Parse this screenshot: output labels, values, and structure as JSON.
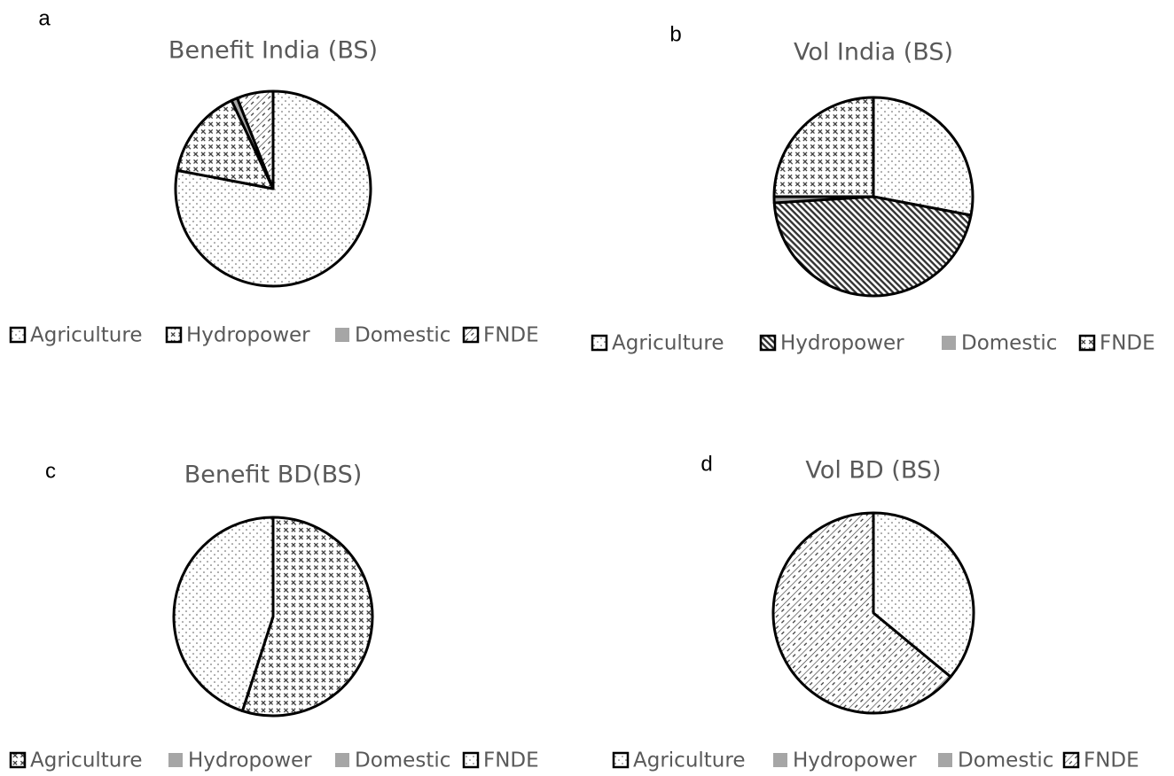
{
  "chart_data": [
    {
      "type": "pie",
      "label": "a",
      "title": "Benefit India (BS)",
      "categories": [
        "Agriculture",
        "Hydropower",
        "Domestic",
        "FNDE"
      ],
      "values": [
        78,
        15,
        1,
        6
      ],
      "patterns": [
        "dots",
        "weave",
        "gray",
        "hatch"
      ]
    },
    {
      "type": "pie",
      "label": "b",
      "title": "Vol India (BS)",
      "categories": [
        "Agriculture",
        "Hydropower",
        "Domestic",
        "FNDE"
      ],
      "values": [
        28,
        46,
        1,
        25
      ],
      "patterns": [
        "dots",
        "dense",
        "gray",
        "weave"
      ]
    },
    {
      "type": "pie",
      "label": "c",
      "title": "Benefit BD(BS)",
      "categories": [
        "Agriculture",
        "Hydropower",
        "Domestic",
        "FNDE"
      ],
      "values": [
        55,
        0,
        0,
        45
      ],
      "patterns": [
        "weave",
        "gray",
        "gray",
        "dots"
      ]
    },
    {
      "type": "pie",
      "label": "d",
      "title": "Vol BD (BS)",
      "categories": [
        "Agriculture",
        "Hydropower",
        "Domestic",
        "FNDE"
      ],
      "values": [
        36,
        0,
        0,
        64
      ],
      "patterns": [
        "dots",
        "gray",
        "gray",
        "hatch"
      ]
    }
  ]
}
